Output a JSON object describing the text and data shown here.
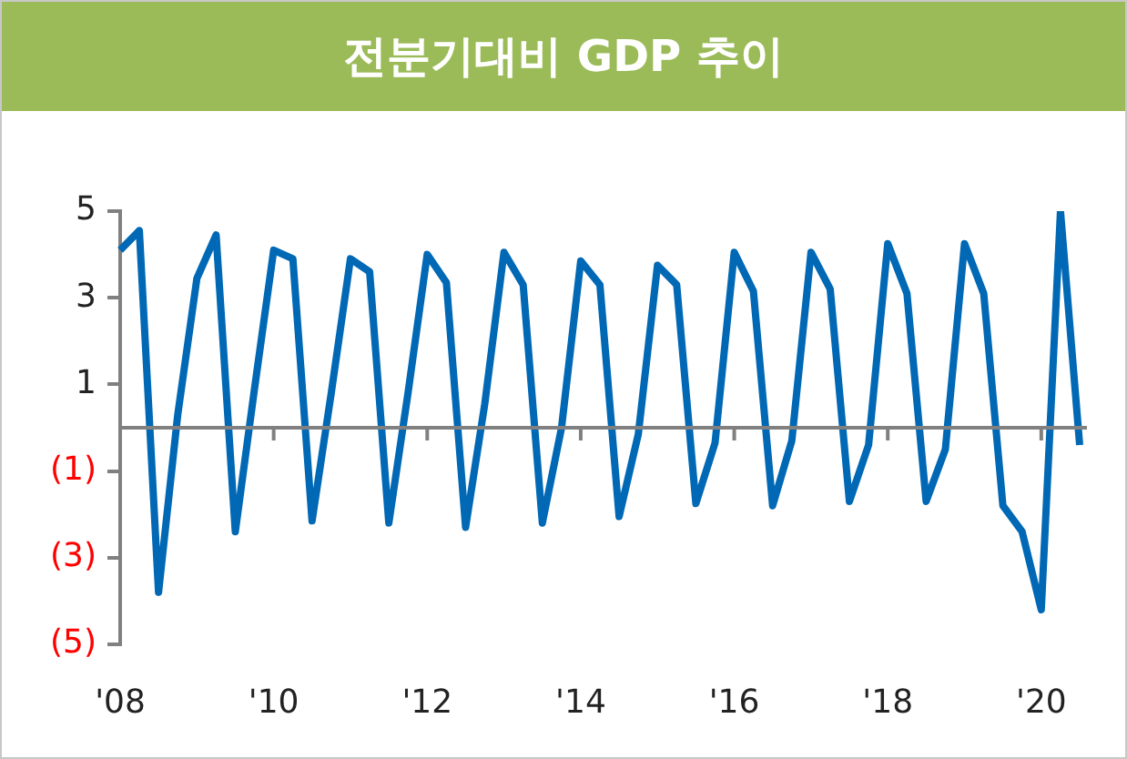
{
  "chart_data": {
    "type": "line",
    "title": "전분기대비 GDP 추이",
    "categories": [
      "'08",
      null,
      null,
      null,
      null,
      null,
      null,
      null,
      "'10",
      null,
      null,
      null,
      null,
      null,
      null,
      null,
      "'12",
      null,
      null,
      null,
      null,
      null,
      null,
      null,
      "'14",
      null,
      null,
      null,
      null,
      null,
      null,
      null,
      "'16",
      null,
      null,
      null,
      null,
      null,
      null,
      null,
      "'18",
      null,
      null,
      null,
      null,
      null,
      null,
      null,
      "'20",
      null,
      null
    ],
    "values": [
      4.1,
      4.55,
      -3.8,
      0.3,
      3.45,
      4.45,
      -2.4,
      0.9,
      4.1,
      3.9,
      -2.15,
      0.8,
      3.9,
      3.6,
      -2.2,
      0.8,
      4.0,
      3.35,
      -2.3,
      0.55,
      4.05,
      3.3,
      -2.2,
      0.0,
      3.85,
      3.3,
      -2.05,
      -0.15,
      3.75,
      3.3,
      -1.75,
      -0.35,
      4.05,
      3.15,
      -1.8,
      -0.3,
      4.05,
      3.2,
      -1.7,
      -0.4,
      4.25,
      3.1,
      -1.7,
      -0.5,
      4.25,
      3.1,
      -1.8,
      -2.4,
      -4.2,
      5.0,
      -0.4
    ],
    "color": "#0068b4",
    "ylim": [
      -5,
      5
    ],
    "yticks": [
      {
        "value": -5,
        "label": "(5)"
      },
      {
        "value": -3,
        "label": "(3)"
      },
      {
        "value": -1,
        "label": "(1)"
      },
      1,
      3,
      5
    ],
    "grid": false,
    "legend": false,
    "marker": "none",
    "line_style": "solid"
  }
}
